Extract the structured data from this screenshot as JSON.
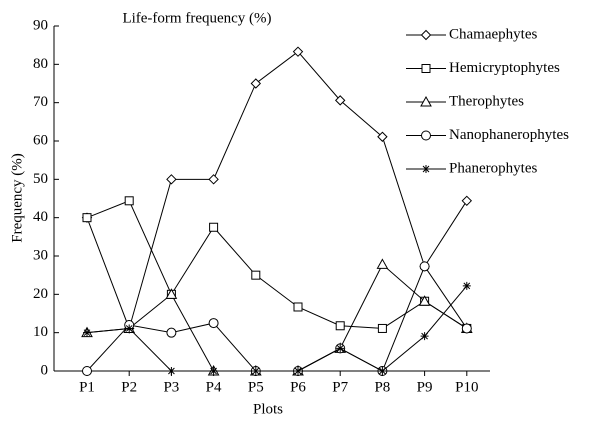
{
  "chart_data": {
    "type": "line",
    "title": "Life-form frequency (%)",
    "x_label": "Plots",
    "y_label": "Frequency (%)",
    "categories": [
      "P1",
      "P2",
      "P3",
      "P4",
      "P5",
      "P6",
      "P7",
      "P8",
      "P9",
      "P10"
    ],
    "ylim": [
      0,
      90
    ],
    "yticks": [
      0,
      10,
      20,
      30,
      40,
      50,
      60,
      70,
      80,
      90
    ],
    "grid": false,
    "legend": "right",
    "series": [
      {
        "name": "Chamaephytes",
        "color": "#000000",
        "marker": "diamond",
        "values": [
          40,
          11.1,
          50,
          50,
          75,
          83.3,
          70.6,
          61.1,
          27.3,
          44.4
        ]
      },
      {
        "name": "Hemicryptophytes",
        "color": "#000000",
        "marker": "square",
        "values": [
          40,
          44.4,
          20,
          37.5,
          25,
          16.7,
          11.8,
          11.1,
          18.2,
          11.1
        ]
      },
      {
        "name": "Therophytes",
        "color": "#000000",
        "marker": "triangle",
        "values": [
          10,
          11.1,
          20,
          0,
          0,
          0,
          5.9,
          27.8,
          18.2,
          11.1
        ]
      },
      {
        "name": "Nanophanerophytes",
        "color": "#000000",
        "marker": "circle",
        "values": [
          0,
          12,
          10,
          12.5,
          0,
          0,
          5.9,
          0,
          27.3,
          11.1
        ]
      },
      {
        "name": "Phanerophytes",
        "color": "#000000",
        "marker": "star",
        "values": [
          10,
          11.1,
          0,
          0,
          0,
          0,
          5.9,
          0,
          9.1,
          22.2
        ]
      }
    ]
  }
}
